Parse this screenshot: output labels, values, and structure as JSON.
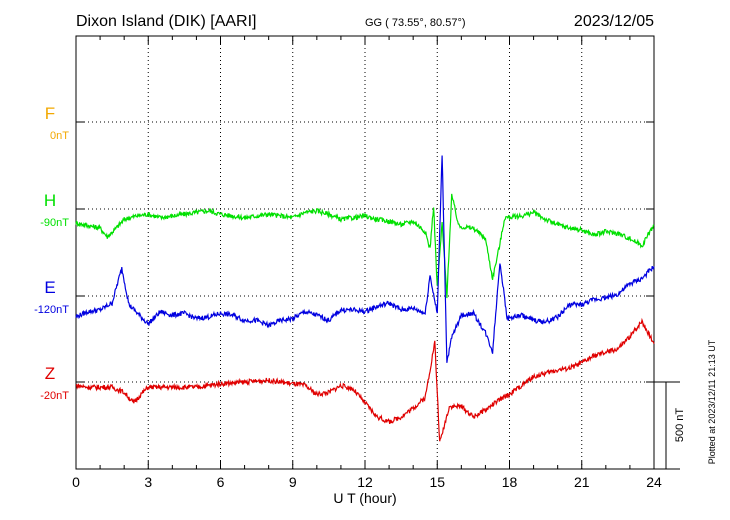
{
  "header": {
    "station": "Dixon Island (DIK)  [AARI]",
    "coords": "GG ( 73.55°,  80.57°)",
    "date": "2023/12/05"
  },
  "plotted_note": "Plotted at 2023/12/11 21:13 UT",
  "colors": {
    "F": "#f2a800",
    "H": "#00e000",
    "E": "#0000e0",
    "Z": "#e00000"
  },
  "chart_data": {
    "type": "line",
    "title": "Dixon Island (DIK)  [AARI]",
    "xlabel": "U T (hour)",
    "xlim": [
      0,
      24
    ],
    "xticks": [
      0,
      3,
      6,
      9,
      12,
      15,
      18,
      21,
      24
    ],
    "grid": true,
    "scale_bar": {
      "label": "500 nT",
      "value": 500
    },
    "series": [
      {
        "name": "F",
        "baseline_label": "0nT",
        "baseline_nT": 0,
        "color": "#f2a800",
        "points": []
      },
      {
        "name": "H",
        "baseline_label": "-90nT",
        "baseline_nT": -90,
        "color": "#00e000",
        "points": [
          [
            0,
            -80
          ],
          [
            0.5,
            -95
          ],
          [
            1,
            -110
          ],
          [
            1.3,
            -160
          ],
          [
            1.6,
            -120
          ],
          [
            2,
            -60
          ],
          [
            2.5,
            -40
          ],
          [
            3,
            -30
          ],
          [
            3.5,
            -50
          ],
          [
            4,
            -40
          ],
          [
            4.5,
            -30
          ],
          [
            5,
            -20
          ],
          [
            5.5,
            -10
          ],
          [
            6,
            -30
          ],
          [
            6.5,
            -40
          ],
          [
            7,
            -50
          ],
          [
            7.5,
            -40
          ],
          [
            8,
            -30
          ],
          [
            8.5,
            -40
          ],
          [
            9,
            -50
          ],
          [
            9.5,
            -20
          ],
          [
            10,
            -10
          ],
          [
            10.5,
            -30
          ],
          [
            11,
            -60
          ],
          [
            11.5,
            -50
          ],
          [
            12,
            -40
          ],
          [
            12.5,
            -60
          ],
          [
            13,
            -70
          ],
          [
            13.5,
            -90
          ],
          [
            14,
            -70
          ],
          [
            14.5,
            -130
          ],
          [
            14.7,
            -230
          ],
          [
            14.85,
            20
          ],
          [
            15,
            -450
          ],
          [
            15.2,
            -80
          ],
          [
            15.4,
            -500
          ],
          [
            15.6,
            80
          ],
          [
            15.9,
            -100
          ],
          [
            16.5,
            -110
          ],
          [
            17,
            -170
          ],
          [
            17.3,
            -400
          ],
          [
            17.6,
            -200
          ],
          [
            17.8,
            -50
          ],
          [
            18.5,
            -40
          ],
          [
            19,
            -20
          ],
          [
            19.5,
            -60
          ],
          [
            20,
            -90
          ],
          [
            20.5,
            -110
          ],
          [
            21,
            -120
          ],
          [
            21.5,
            -150
          ],
          [
            22,
            -130
          ],
          [
            22.5,
            -140
          ],
          [
            23,
            -170
          ],
          [
            23.5,
            -210
          ],
          [
            24,
            -90
          ]
        ]
      },
      {
        "name": "E",
        "baseline_label": "-120nT",
        "baseline_nT": -120,
        "color": "#0000e0",
        "points": [
          [
            0,
            -120
          ],
          [
            0.5,
            -90
          ],
          [
            1,
            -80
          ],
          [
            1.5,
            -40
          ],
          [
            1.9,
            160
          ],
          [
            2.2,
            -50
          ],
          [
            2.7,
            -120
          ],
          [
            3,
            -160
          ],
          [
            3.5,
            -90
          ],
          [
            4,
            -110
          ],
          [
            4.5,
            -100
          ],
          [
            5,
            -130
          ],
          [
            5.5,
            -120
          ],
          [
            6,
            -100
          ],
          [
            6.5,
            -110
          ],
          [
            7,
            -140
          ],
          [
            7.5,
            -140
          ],
          [
            8,
            -170
          ],
          [
            8.5,
            -140
          ],
          [
            9,
            -130
          ],
          [
            9.5,
            -90
          ],
          [
            10,
            -110
          ],
          [
            10.5,
            -140
          ],
          [
            11,
            -80
          ],
          [
            11.5,
            -80
          ],
          [
            12,
            -90
          ],
          [
            12.5,
            -60
          ],
          [
            13,
            -40
          ],
          [
            13.5,
            -80
          ],
          [
            14,
            -70
          ],
          [
            14.5,
            -100
          ],
          [
            14.7,
            120
          ],
          [
            15,
            -100
          ],
          [
            15.2,
            820
          ],
          [
            15.4,
            -380
          ],
          [
            15.6,
            -240
          ],
          [
            16,
            -110
          ],
          [
            16.5,
            -100
          ],
          [
            17,
            -210
          ],
          [
            17.3,
            -320
          ],
          [
            17.6,
            200
          ],
          [
            17.9,
            -130
          ],
          [
            18.5,
            -110
          ],
          [
            19,
            -140
          ],
          [
            19.5,
            -150
          ],
          [
            20,
            -120
          ],
          [
            20.5,
            -50
          ],
          [
            21,
            -50
          ],
          [
            21.5,
            -20
          ],
          [
            22,
            -10
          ],
          [
            22.5,
            10
          ],
          [
            23,
            70
          ],
          [
            23.5,
            100
          ],
          [
            24,
            170
          ]
        ]
      },
      {
        "name": "Z",
        "baseline_label": "-20nT",
        "baseline_nT": -20,
        "color": "#e00000",
        "points": [
          [
            0,
            -20
          ],
          [
            0.5,
            -30
          ],
          [
            1,
            -30
          ],
          [
            1.5,
            -30
          ],
          [
            2,
            -60
          ],
          [
            2.4,
            -120
          ],
          [
            2.7,
            -70
          ],
          [
            3,
            -30
          ],
          [
            4,
            -30
          ],
          [
            5,
            -30
          ],
          [
            6,
            -10
          ],
          [
            7,
            0
          ],
          [
            8,
            10
          ],
          [
            9,
            -10
          ],
          [
            9.5,
            -20
          ],
          [
            10,
            -70
          ],
          [
            10.5,
            -60
          ],
          [
            11,
            -20
          ],
          [
            11.5,
            -40
          ],
          [
            12,
            -120
          ],
          [
            12.5,
            -200
          ],
          [
            13,
            -230
          ],
          [
            13.5,
            -200
          ],
          [
            14,
            -150
          ],
          [
            14.5,
            -90
          ],
          [
            14.9,
            230
          ],
          [
            15.1,
            -350
          ],
          [
            15.5,
            -140
          ],
          [
            16,
            -140
          ],
          [
            16.5,
            -200
          ],
          [
            17,
            -160
          ],
          [
            17.5,
            -110
          ],
          [
            18,
            -70
          ],
          [
            18.5,
            -20
          ],
          [
            19,
            30
          ],
          [
            19.5,
            50
          ],
          [
            20,
            70
          ],
          [
            20.5,
            80
          ],
          [
            21,
            110
          ],
          [
            21.5,
            150
          ],
          [
            22,
            170
          ],
          [
            22.5,
            190
          ],
          [
            23,
            260
          ],
          [
            23.5,
            350
          ],
          [
            24,
            220
          ]
        ]
      }
    ]
  }
}
